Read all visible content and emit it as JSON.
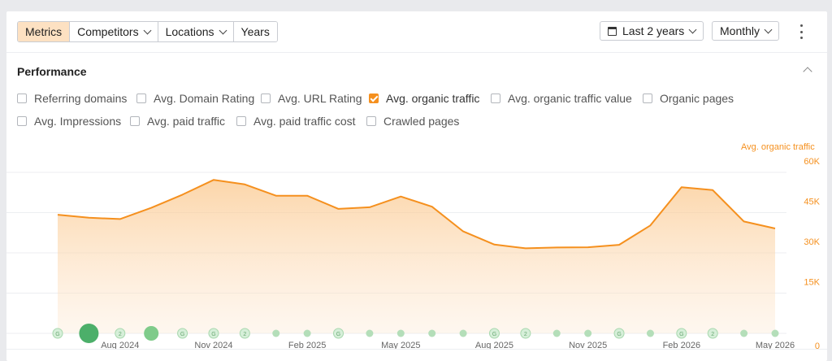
{
  "toolbar": {
    "tabs": [
      {
        "label": "Metrics",
        "active": true,
        "dropdown": false
      },
      {
        "label": "Competitors",
        "active": false,
        "dropdown": true
      },
      {
        "label": "Locations",
        "active": false,
        "dropdown": true
      },
      {
        "label": "Years",
        "active": false,
        "dropdown": false
      }
    ],
    "date_range": "Last 2 years",
    "granularity": "Monthly",
    "icons": {
      "calendar": "calendar-icon",
      "more": "kebab-menu-icon"
    }
  },
  "performance": {
    "title": "Performance",
    "metrics": [
      {
        "label": "Referring domains",
        "checked": false
      },
      {
        "label": "Avg. Domain Rating",
        "checked": false
      },
      {
        "label": "Avg. URL Rating",
        "checked": false
      },
      {
        "label": "Avg. organic traffic",
        "checked": true
      },
      {
        "label": "Avg. organic traffic value",
        "checked": false
      },
      {
        "label": "Organic pages",
        "checked": false
      },
      {
        "label": "Avg. Impressions",
        "checked": false
      },
      {
        "label": "Avg. paid traffic",
        "checked": false
      },
      {
        "label": "Avg. paid traffic cost",
        "checked": false
      },
      {
        "label": "Crawled pages",
        "checked": false
      }
    ]
  },
  "chart_data": {
    "type": "area",
    "x": [
      "Jun 2024",
      "Jul 2024",
      "Aug 2024",
      "Sep 2024",
      "Oct 2024",
      "Nov 2024",
      "Dec 2024",
      "Jan 2025",
      "Feb 2025",
      "Mar 2025",
      "Apr 2025",
      "May 2025",
      "Jun 2025",
      "Jul 2025",
      "Aug 2025",
      "Sep 2025",
      "Oct 2025",
      "Nov 2025",
      "Dec 2025",
      "Jan 2026",
      "Feb 2026",
      "Mar 2026",
      "Apr 2026",
      "May 2026"
    ],
    "series": [
      {
        "name": "Avg. organic traffic",
        "color": "#f5901e",
        "values": [
          44200,
          43100,
          42600,
          46800,
          51700,
          57200,
          55500,
          51300,
          51300,
          46400,
          47000,
          51000,
          47200,
          38000,
          33100,
          31700,
          32000,
          32100,
          33000,
          40200,
          54500,
          53400,
          41700,
          39100
        ]
      }
    ],
    "x_tick_labels": [
      "Aug 2024",
      "Nov 2024",
      "Feb 2025",
      "May 2025",
      "Aug 2025",
      "Nov 2025",
      "Feb 2026",
      "May 2026"
    ],
    "x_tick_months": [
      "Aug 2024",
      "Nov 2024",
      "Feb 2025",
      "May 2025",
      "Aug 2025",
      "Nov 2025",
      "Feb 2026",
      "May 2026"
    ],
    "y_ticks": [
      {
        "value": 0,
        "label": "0"
      },
      {
        "value": 15000,
        "label": "15K"
      },
      {
        "value": 30000,
        "label": "30K"
      },
      {
        "value": 45000,
        "label": "45K"
      },
      {
        "value": 60000,
        "label": "60K"
      }
    ],
    "ylim": [
      0,
      60000
    ],
    "grid": true,
    "annotation_markers": [
      {
        "month": "Jun 2024",
        "type": "g",
        "label": "G"
      },
      {
        "month": "Jul 2024",
        "type": "big"
      },
      {
        "month": "Aug 2024",
        "type": "num",
        "label": "2"
      },
      {
        "month": "Sep 2024",
        "type": "medium"
      },
      {
        "month": "Oct 2024",
        "type": "g",
        "label": "G"
      },
      {
        "month": "Nov 2024",
        "type": "g",
        "label": "G"
      },
      {
        "month": "Dec 2024",
        "type": "num",
        "label": "2"
      },
      {
        "month": "Jan 2025",
        "type": "dot"
      },
      {
        "month": "Feb 2025",
        "type": "dot"
      },
      {
        "month": "Mar 2025",
        "type": "g",
        "label": "G"
      },
      {
        "month": "Apr 2025",
        "type": "dot"
      },
      {
        "month": "May 2025",
        "type": "dot"
      },
      {
        "month": "Jun 2025",
        "type": "dot"
      },
      {
        "month": "Jul 2025",
        "type": "dot"
      },
      {
        "month": "Aug 2025",
        "type": "g",
        "label": "G"
      },
      {
        "month": "Sep 2025",
        "type": "num",
        "label": "2"
      },
      {
        "month": "Oct 2025",
        "type": "dot"
      },
      {
        "month": "Nov 2025",
        "type": "dot"
      },
      {
        "month": "Dec 2025",
        "type": "g",
        "label": "G"
      },
      {
        "month": "Jan 2026",
        "type": "dot"
      },
      {
        "month": "Feb 2026",
        "type": "g",
        "label": "G"
      },
      {
        "month": "Mar 2026",
        "type": "num",
        "label": "2"
      },
      {
        "month": "Apr 2026",
        "type": "dot"
      },
      {
        "month": "May 2026",
        "type": "dot"
      }
    ]
  }
}
